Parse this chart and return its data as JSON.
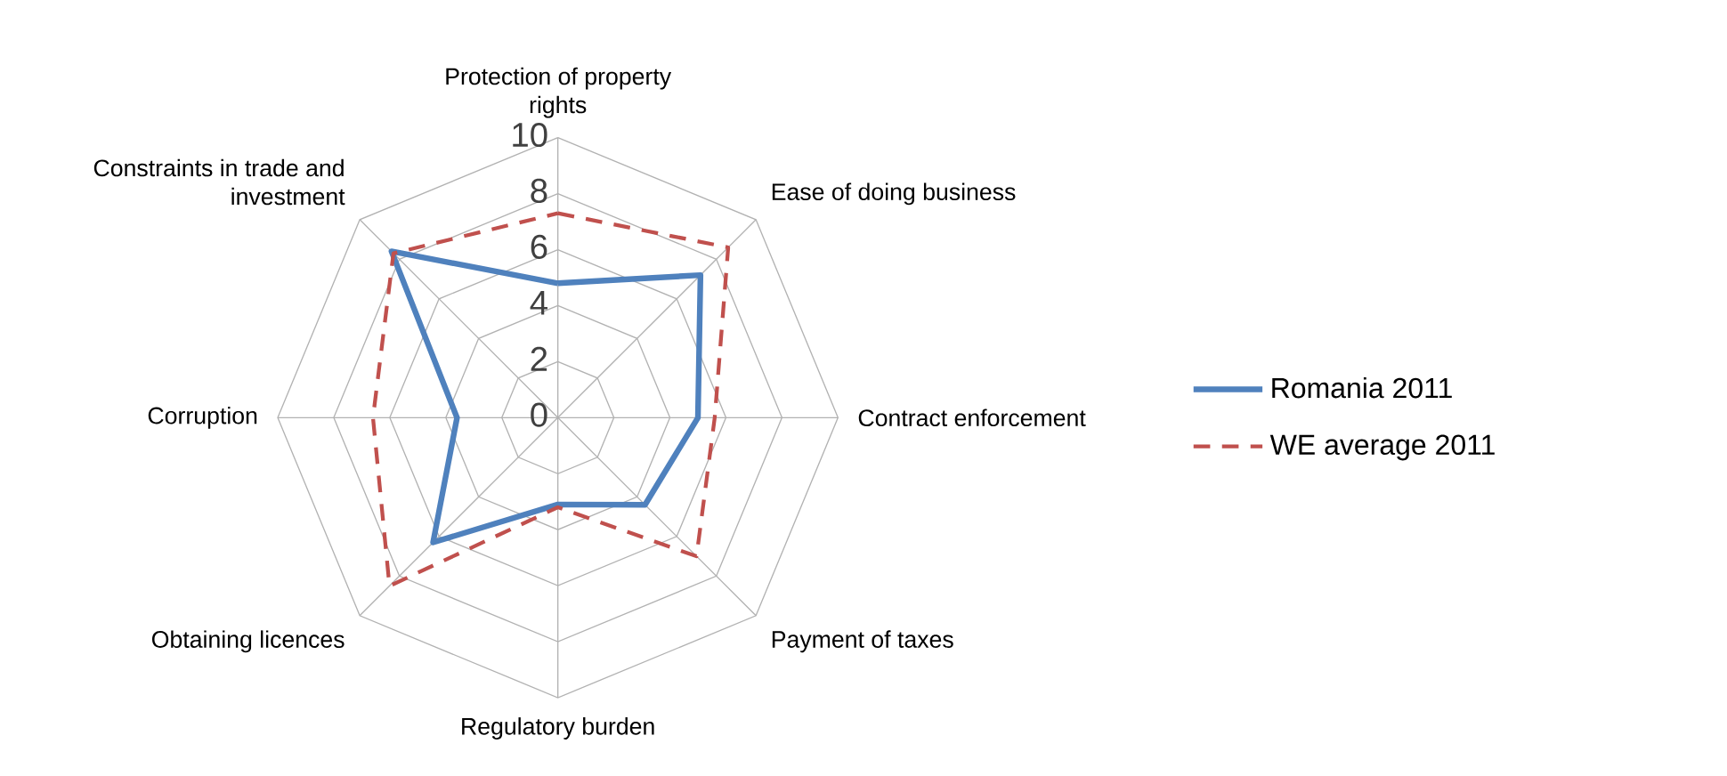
{
  "chart_data": {
    "type": "radar",
    "categories": [
      "Protection of property rights",
      "Ease of doing business",
      "Contract enforcement",
      "Payment of taxes",
      "Regulatory burden",
      "Obtaining licences",
      "Corruption",
      "Constraints in trade and investment"
    ],
    "series": [
      {
        "name": "Romania 2011",
        "color": "#4f81bd",
        "line_style": "solid",
        "values": [
          4.8,
          7.2,
          5.0,
          4.4,
          3.1,
          6.3,
          3.6,
          8.4
        ]
      },
      {
        "name": "WE average 2011",
        "color": "#c0504d",
        "line_style": "dashed",
        "values": [
          7.3,
          8.6,
          5.6,
          7.0,
          3.2,
          8.5,
          6.6,
          8.3
        ]
      }
    ],
    "ylim": [
      0,
      10
    ],
    "yticks": [
      0,
      2,
      4,
      6,
      8,
      10
    ],
    "grid": true,
    "legend": "right",
    "marker": "none"
  }
}
